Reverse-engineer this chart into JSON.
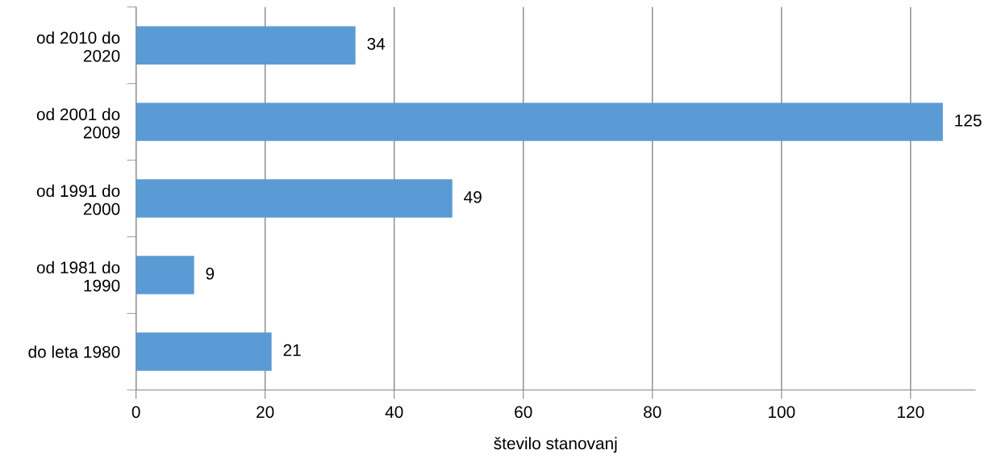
{
  "chart_data": {
    "type": "bar",
    "orientation": "horizontal",
    "xlabel": "število stanovanj",
    "categories": [
      "od 2010 do 2020",
      "od 2001 do 2009",
      "od 1991 do 2000",
      "od 1981 do 1990",
      "do leta 1980"
    ],
    "values": [
      34,
      125,
      49,
      9,
      21
    ],
    "color": "#5b9bd5",
    "xlim": [
      0,
      130
    ],
    "xticks": [
      0,
      20,
      40,
      60,
      80,
      100,
      120
    ],
    "grid": "x",
    "data_labels": true,
    "legend": false
  }
}
